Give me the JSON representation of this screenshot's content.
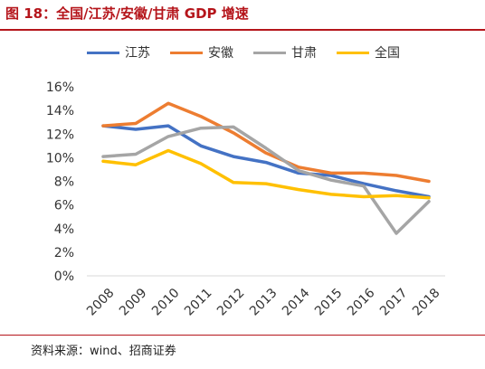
{
  "title": "图 18：全国/江苏/安徽/甘肃 GDP 增速",
  "source": "资料来源：wind、招商证券",
  "chart_data": {
    "type": "line",
    "title": "图 18：全国/江苏/安徽/甘肃 GDP 增速",
    "xlabel": "",
    "ylabel": "",
    "ylim": [
      0,
      16
    ],
    "y_ticks": [
      "0%",
      "2%",
      "4%",
      "6%",
      "8%",
      "10%",
      "12%",
      "14%",
      "16%"
    ],
    "y_tick_values": [
      0,
      2,
      4,
      6,
      8,
      10,
      12,
      14,
      16
    ],
    "categories": [
      "2008",
      "2009",
      "2010",
      "2011",
      "2012",
      "2013",
      "2014",
      "2015",
      "2016",
      "2017",
      "2018"
    ],
    "grid": false,
    "legend": "top",
    "series": [
      {
        "name": "江苏",
        "color": "#4472c4",
        "values": [
          12.7,
          12.4,
          12.7,
          11.0,
          10.1,
          9.6,
          8.7,
          8.5,
          7.8,
          7.2,
          6.7
        ]
      },
      {
        "name": "安徽",
        "color": "#ed7d31",
        "values": [
          12.7,
          12.9,
          14.6,
          13.5,
          12.1,
          10.4,
          9.2,
          8.7,
          8.7,
          8.5,
          8.0
        ]
      },
      {
        "name": "甘肃",
        "color": "#a5a5a5",
        "values": [
          10.1,
          10.3,
          11.8,
          12.5,
          12.6,
          10.8,
          8.9,
          8.1,
          7.6,
          3.6,
          6.3
        ]
      },
      {
        "name": "全国",
        "color": "#ffc000",
        "values": [
          9.7,
          9.4,
          10.6,
          9.5,
          7.9,
          7.8,
          7.3,
          6.9,
          6.7,
          6.8,
          6.6
        ]
      }
    ]
  }
}
